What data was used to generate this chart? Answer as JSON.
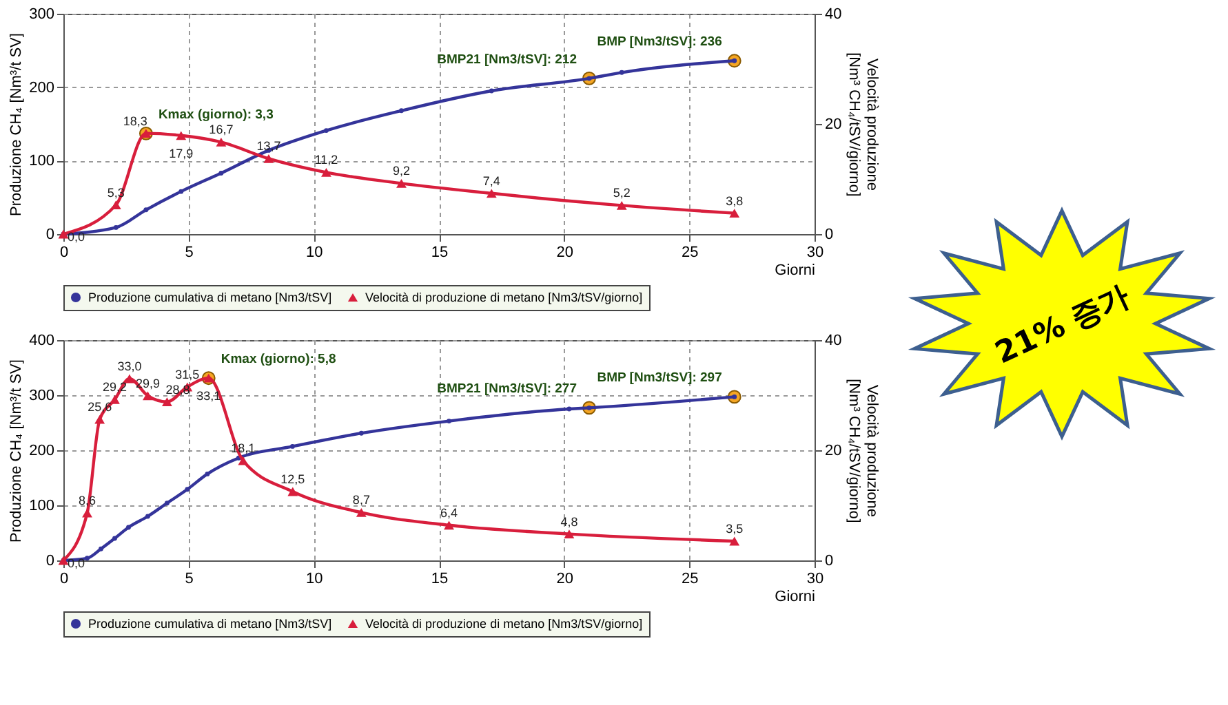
{
  "chart_data": [
    {
      "type": "line",
      "xlabel": "Giorni",
      "ylabel": "Produzione CH₄ [Nm³/t SV]",
      "y2label": "Velocità produzione [Nm³ CH₄/tSV/giorno]",
      "xlim": [
        0,
        30
      ],
      "xticks": [
        0,
        5,
        10,
        15,
        20,
        25,
        30
      ],
      "ylim": [
        0,
        300
      ],
      "yticks": [
        0,
        100,
        200,
        300
      ],
      "y2lim": [
        0,
        40
      ],
      "y2ticks": [
        0,
        20,
        40
      ],
      "grid": true,
      "legend": "bottom",
      "line_style": "solid",
      "series": [
        {
          "name": "Produzione cumulativa di metano [Nm3/tSV]",
          "color": "#34349a",
          "marker": "circle",
          "x": [
            0,
            2.1,
            3.3,
            4.7,
            6.3,
            8.2,
            10.5,
            13.5,
            17.1,
            21,
            22.3,
            26.8
          ],
          "values": [
            0,
            9,
            33,
            58,
            83,
            114,
            141,
            168,
            195,
            212,
            220,
            236
          ]
        },
        {
          "name": "Velocità di produzione di metano [Nm3/tSV/giorno]",
          "color": "#d81e3c",
          "marker": "triangle",
          "axis": "y2",
          "x": [
            0,
            2.1,
            3.3,
            4.7,
            6.3,
            8.2,
            10.5,
            13.5,
            17.1,
            22.3,
            26.8
          ],
          "values": [
            0,
            5.3,
            18.3,
            17.9,
            16.7,
            13.7,
            11.2,
            9.2,
            7.4,
            5.2,
            3.8
          ],
          "value_labels": [
            "0,0",
            "5,3",
            "18,3",
            "17,9",
            "16,7",
            "13,7",
            "11,2",
            "9,2",
            "7,4",
            "5,2",
            "3,8"
          ]
        }
      ],
      "annotations": [
        {
          "text": "Kmax (giorno): 3,3",
          "x": 3.3,
          "y": 137
        },
        {
          "text": "BMP21 [Nm3/tSV]: 212",
          "x": 21,
          "y": 212
        },
        {
          "text": "BMP [Nm3/tSV]: 236",
          "x": 26.8,
          "y": 236
        },
        "21% 증가"
      ]
    },
    {
      "type": "line",
      "xlabel": "Giorni",
      "ylabel": "Produzione CH₄ [Nm³/t SV]",
      "y2label": "Velocità produzione [Nm³ CH₄/tSV/giorno]",
      "xlim": [
        0,
        30
      ],
      "xticks": [
        0,
        5,
        10,
        15,
        20,
        25,
        30
      ],
      "ylim": [
        0,
        400
      ],
      "yticks": [
        0,
        100,
        200,
        300,
        400
      ],
      "y2lim": [
        0,
        40
      ],
      "y2ticks": [
        0,
        20,
        40
      ],
      "grid": true,
      "legend": "bottom",
      "line_style": "solid",
      "series": [
        {
          "name": "Produzione cumulativa di metano [Nm3/tSV]",
          "color": "#34349a",
          "marker": "circle",
          "x": [
            0,
            0.95,
            1.5,
            2.05,
            2.6,
            3.37,
            4.14,
            4.95,
            5.75,
            7.0,
            9.15,
            11.9,
            15.4,
            20.2,
            21,
            26.8
          ],
          "values": [
            0,
            4,
            21,
            40,
            60,
            80,
            104,
            129,
            157,
            186,
            207,
            231,
            253,
            275,
            277,
            297
          ]
        },
        {
          "name": "Velocità di produzione di metano [Nm3/tSV/giorno]",
          "color": "#d81e3c",
          "marker": "triangle",
          "axis": "y2",
          "x": [
            0,
            0.95,
            1.45,
            2.05,
            2.64,
            3.37,
            4.14,
            4.95,
            5.8,
            7.18,
            9.16,
            11.9,
            15.4,
            20.2,
            26.8
          ],
          "values": [
            0,
            8.6,
            25.6,
            29.2,
            33.0,
            29.9,
            28.8,
            31.5,
            33.1,
            18.1,
            12.5,
            8.7,
            6.4,
            4.8,
            3.5
          ],
          "value_labels": [
            "0,0",
            "8,6",
            "25,6",
            "29,2",
            "33,0",
            "29,9",
            "28,8",
            "31,5",
            "33,1",
            "18,1",
            "12,5",
            "8,7",
            "6,4",
            "4,8",
            "3,5"
          ]
        }
      ],
      "annotations": [
        {
          "text": "Kmax (giorno): 5,8",
          "x": 5.8,
          "y": 331
        },
        {
          "text": "BMP21 [Nm3/tSV]: 277",
          "x": 21,
          "y": 277
        },
        {
          "text": "BMP [Nm3/tSV]: 297",
          "x": 26.8,
          "y": 297
        }
      ]
    }
  ]
}
